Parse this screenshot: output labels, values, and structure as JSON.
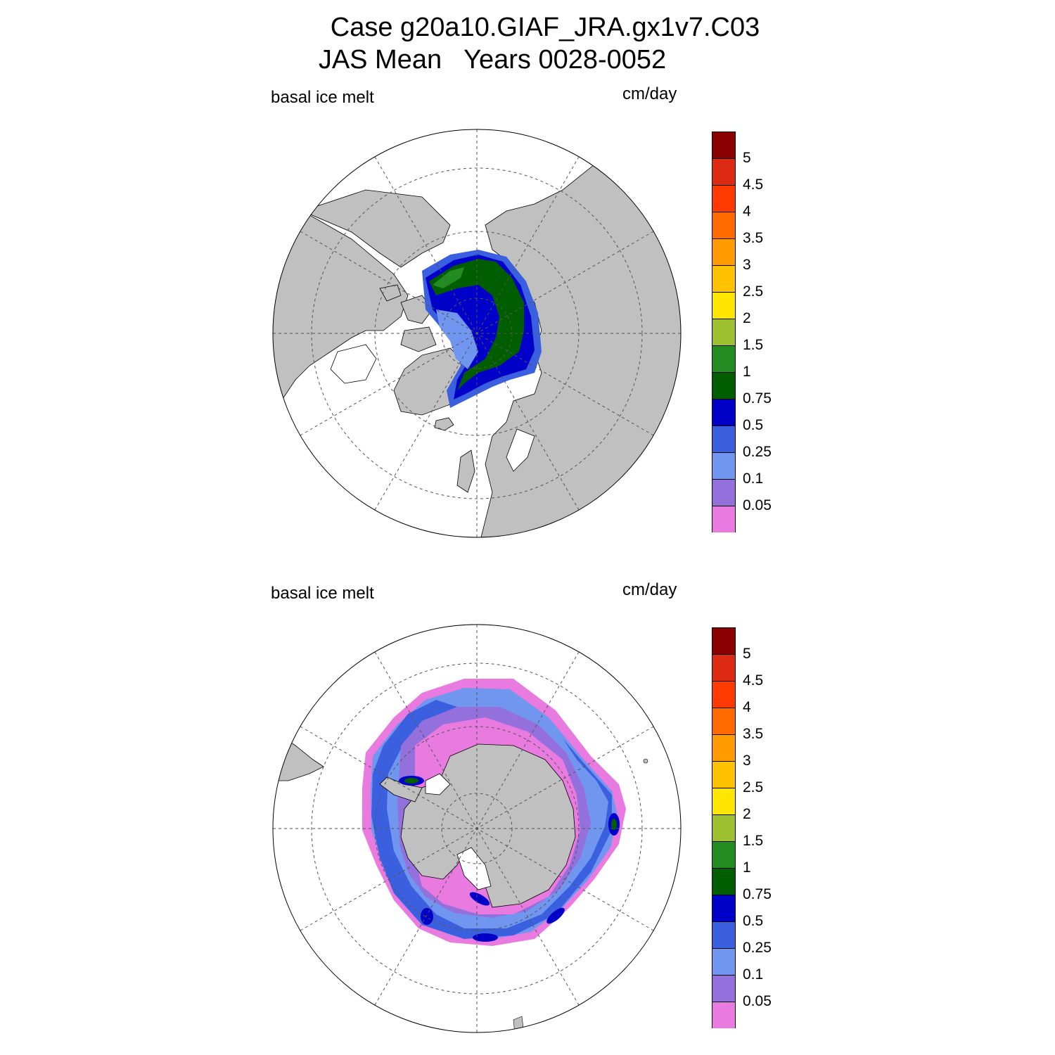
{
  "title": "Case g20a10.GIAF_JRA.gx1v7.C03",
  "subtitle": "JAS Mean   Years 0028-0052",
  "panels": [
    {
      "id": "north",
      "label": "basal ice melt",
      "units": "cm/day"
    },
    {
      "id": "south",
      "label": "basal ice melt",
      "units": "cm/day"
    }
  ],
  "colorbar": {
    "ticks": [
      "5",
      "4.5",
      "4",
      "3.5",
      "3",
      "2.5",
      "2",
      "1.5",
      "1",
      "0.75",
      "0.5",
      "0.25",
      "0.1",
      "0.05"
    ],
    "colors": [
      "#8b0000",
      "#dd2a12",
      "#ff3a00",
      "#ff6a00",
      "#ff9a00",
      "#ffc200",
      "#ffe600",
      "#9dc030",
      "#228b22",
      "#005e00",
      "#0000c8",
      "#3a60e0",
      "#7096f0",
      "#9370db",
      "#e87ae0"
    ]
  },
  "colors": {
    "land": "#c0c0c0",
    "ocean": "#ffffff",
    "grid": "#555555"
  }
}
